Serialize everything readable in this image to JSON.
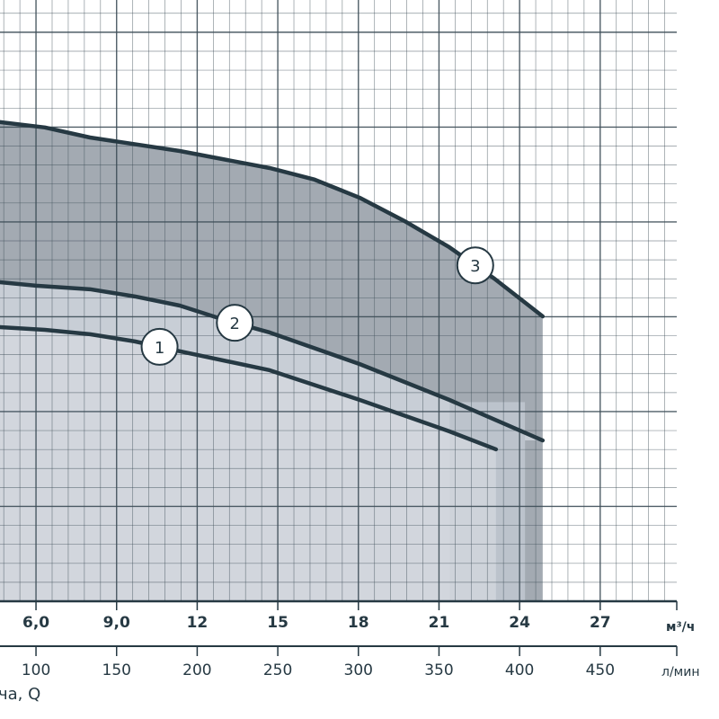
{
  "chart_data": {
    "type": "line",
    "title": "",
    "xlabel": "ча, Q",
    "x_unit_primary": "м³/ч",
    "x_unit_secondary": "л/мин",
    "xlim": [
      4.66,
      29.85
    ],
    "ylim": [
      0,
      31.7
    ],
    "y_units_note": "",
    "grid": true,
    "x_ticks_primary": [
      "6,0",
      "9,0",
      "12",
      "15",
      "18",
      "21",
      "24",
      "27"
    ],
    "x_ticks_primary_values": [
      6,
      9,
      12,
      15,
      18,
      21,
      24,
      27
    ],
    "x_ticks_secondary": [
      "100",
      "150",
      "200",
      "250",
      "300",
      "350",
      "400",
      "450"
    ],
    "x_ticks_secondary_values": [
      100,
      150,
      200,
      250,
      300,
      350,
      400,
      450
    ],
    "series": [
      {
        "name": "1",
        "x": [
          4.66,
          6.33,
          8.01,
          9.68,
          11.35,
          14.7,
          18.04,
          21.38,
          23.12
        ],
        "y": [
          14.45,
          14.31,
          14.08,
          13.7,
          13.18,
          12.18,
          10.62,
          8.96,
          8.01
        ],
        "label_at": 10.6
      },
      {
        "name": "2",
        "x": [
          4.66,
          6.0,
          8.01,
          9.68,
          11.35,
          13.02,
          14.7,
          18.04,
          21.38,
          24.86
        ],
        "y": [
          16.82,
          16.64,
          16.45,
          16.07,
          15.59,
          14.83,
          14.17,
          12.51,
          10.62,
          8.48
        ],
        "label_at": 13.4
      },
      {
        "name": "3",
        "x": [
          4.66,
          6.33,
          8.01,
          11.35,
          14.7,
          16.37,
          18.04,
          19.71,
          21.38,
          23.06,
          24.86
        ],
        "y": [
          25.26,
          24.98,
          24.45,
          23.74,
          22.84,
          22.23,
          21.28,
          20.05,
          18.67,
          17.01,
          15.02
        ],
        "label_at": 22.35
      }
    ],
    "colors": {
      "line": "#263943",
      "fill3": "#a3aab2",
      "fill2": "#c8ced6",
      "fill1": "#d5dae0",
      "grid": "#3d4d57"
    }
  }
}
